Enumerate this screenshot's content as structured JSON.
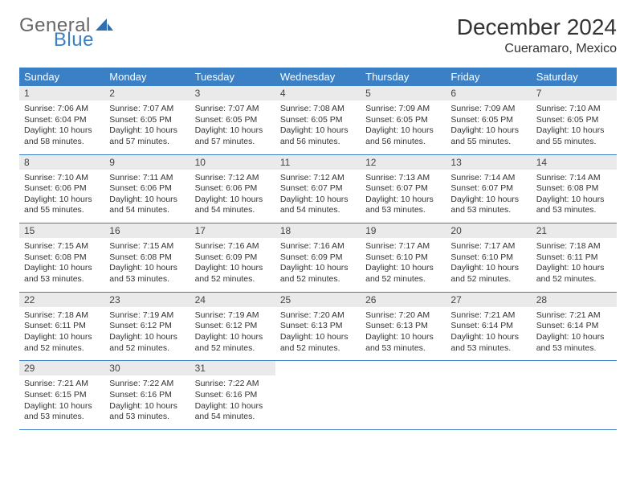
{
  "logo": {
    "general": "General",
    "blue": "Blue"
  },
  "title": "December 2024",
  "subtitle": "Cueramaro, Mexico",
  "colors": {
    "header_bg": "#3b7fc4",
    "header_text": "#ffffff",
    "daynum_bg": "#eaeaea",
    "border": "#3b7fc4",
    "text": "#333333"
  },
  "daysOfWeek": [
    "Sunday",
    "Monday",
    "Tuesday",
    "Wednesday",
    "Thursday",
    "Friday",
    "Saturday"
  ],
  "weeks": [
    [
      {
        "num": "1",
        "sunrise": "Sunrise: 7:06 AM",
        "sunset": "Sunset: 6:04 PM",
        "daylight": "Daylight: 10 hours and 58 minutes."
      },
      {
        "num": "2",
        "sunrise": "Sunrise: 7:07 AM",
        "sunset": "Sunset: 6:05 PM",
        "daylight": "Daylight: 10 hours and 57 minutes."
      },
      {
        "num": "3",
        "sunrise": "Sunrise: 7:07 AM",
        "sunset": "Sunset: 6:05 PM",
        "daylight": "Daylight: 10 hours and 57 minutes."
      },
      {
        "num": "4",
        "sunrise": "Sunrise: 7:08 AM",
        "sunset": "Sunset: 6:05 PM",
        "daylight": "Daylight: 10 hours and 56 minutes."
      },
      {
        "num": "5",
        "sunrise": "Sunrise: 7:09 AM",
        "sunset": "Sunset: 6:05 PM",
        "daylight": "Daylight: 10 hours and 56 minutes."
      },
      {
        "num": "6",
        "sunrise": "Sunrise: 7:09 AM",
        "sunset": "Sunset: 6:05 PM",
        "daylight": "Daylight: 10 hours and 55 minutes."
      },
      {
        "num": "7",
        "sunrise": "Sunrise: 7:10 AM",
        "sunset": "Sunset: 6:05 PM",
        "daylight": "Daylight: 10 hours and 55 minutes."
      }
    ],
    [
      {
        "num": "8",
        "sunrise": "Sunrise: 7:10 AM",
        "sunset": "Sunset: 6:06 PM",
        "daylight": "Daylight: 10 hours and 55 minutes."
      },
      {
        "num": "9",
        "sunrise": "Sunrise: 7:11 AM",
        "sunset": "Sunset: 6:06 PM",
        "daylight": "Daylight: 10 hours and 54 minutes."
      },
      {
        "num": "10",
        "sunrise": "Sunrise: 7:12 AM",
        "sunset": "Sunset: 6:06 PM",
        "daylight": "Daylight: 10 hours and 54 minutes."
      },
      {
        "num": "11",
        "sunrise": "Sunrise: 7:12 AM",
        "sunset": "Sunset: 6:07 PM",
        "daylight": "Daylight: 10 hours and 54 minutes."
      },
      {
        "num": "12",
        "sunrise": "Sunrise: 7:13 AM",
        "sunset": "Sunset: 6:07 PM",
        "daylight": "Daylight: 10 hours and 53 minutes."
      },
      {
        "num": "13",
        "sunrise": "Sunrise: 7:14 AM",
        "sunset": "Sunset: 6:07 PM",
        "daylight": "Daylight: 10 hours and 53 minutes."
      },
      {
        "num": "14",
        "sunrise": "Sunrise: 7:14 AM",
        "sunset": "Sunset: 6:08 PM",
        "daylight": "Daylight: 10 hours and 53 minutes."
      }
    ],
    [
      {
        "num": "15",
        "sunrise": "Sunrise: 7:15 AM",
        "sunset": "Sunset: 6:08 PM",
        "daylight": "Daylight: 10 hours and 53 minutes."
      },
      {
        "num": "16",
        "sunrise": "Sunrise: 7:15 AM",
        "sunset": "Sunset: 6:08 PM",
        "daylight": "Daylight: 10 hours and 53 minutes."
      },
      {
        "num": "17",
        "sunrise": "Sunrise: 7:16 AM",
        "sunset": "Sunset: 6:09 PM",
        "daylight": "Daylight: 10 hours and 52 minutes."
      },
      {
        "num": "18",
        "sunrise": "Sunrise: 7:16 AM",
        "sunset": "Sunset: 6:09 PM",
        "daylight": "Daylight: 10 hours and 52 minutes."
      },
      {
        "num": "19",
        "sunrise": "Sunrise: 7:17 AM",
        "sunset": "Sunset: 6:10 PM",
        "daylight": "Daylight: 10 hours and 52 minutes."
      },
      {
        "num": "20",
        "sunrise": "Sunrise: 7:17 AM",
        "sunset": "Sunset: 6:10 PM",
        "daylight": "Daylight: 10 hours and 52 minutes."
      },
      {
        "num": "21",
        "sunrise": "Sunrise: 7:18 AM",
        "sunset": "Sunset: 6:11 PM",
        "daylight": "Daylight: 10 hours and 52 minutes."
      }
    ],
    [
      {
        "num": "22",
        "sunrise": "Sunrise: 7:18 AM",
        "sunset": "Sunset: 6:11 PM",
        "daylight": "Daylight: 10 hours and 52 minutes."
      },
      {
        "num": "23",
        "sunrise": "Sunrise: 7:19 AM",
        "sunset": "Sunset: 6:12 PM",
        "daylight": "Daylight: 10 hours and 52 minutes."
      },
      {
        "num": "24",
        "sunrise": "Sunrise: 7:19 AM",
        "sunset": "Sunset: 6:12 PM",
        "daylight": "Daylight: 10 hours and 52 minutes."
      },
      {
        "num": "25",
        "sunrise": "Sunrise: 7:20 AM",
        "sunset": "Sunset: 6:13 PM",
        "daylight": "Daylight: 10 hours and 52 minutes."
      },
      {
        "num": "26",
        "sunrise": "Sunrise: 7:20 AM",
        "sunset": "Sunset: 6:13 PM",
        "daylight": "Daylight: 10 hours and 53 minutes."
      },
      {
        "num": "27",
        "sunrise": "Sunrise: 7:21 AM",
        "sunset": "Sunset: 6:14 PM",
        "daylight": "Daylight: 10 hours and 53 minutes."
      },
      {
        "num": "28",
        "sunrise": "Sunrise: 7:21 AM",
        "sunset": "Sunset: 6:14 PM",
        "daylight": "Daylight: 10 hours and 53 minutes."
      }
    ],
    [
      {
        "num": "29",
        "sunrise": "Sunrise: 7:21 AM",
        "sunset": "Sunset: 6:15 PM",
        "daylight": "Daylight: 10 hours and 53 minutes."
      },
      {
        "num": "30",
        "sunrise": "Sunrise: 7:22 AM",
        "sunset": "Sunset: 6:16 PM",
        "daylight": "Daylight: 10 hours and 53 minutes."
      },
      {
        "num": "31",
        "sunrise": "Sunrise: 7:22 AM",
        "sunset": "Sunset: 6:16 PM",
        "daylight": "Daylight: 10 hours and 54 minutes."
      },
      null,
      null,
      null,
      null
    ]
  ]
}
